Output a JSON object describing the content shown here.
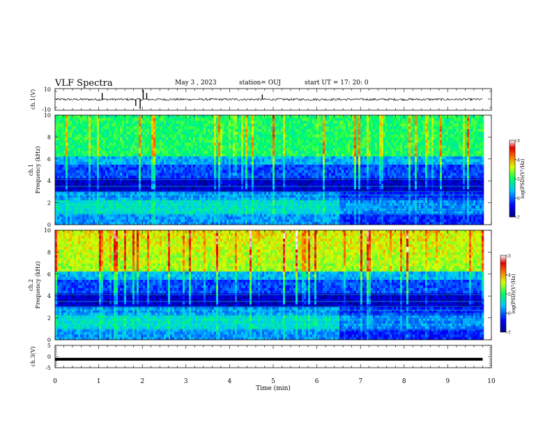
{
  "header": {
    "title": "VLF Spectra",
    "date": "May 3 , 2023",
    "station": "station= OUJ",
    "start": "start UT =  17: 20: 0"
  },
  "chart_data": [
    {
      "type": "line",
      "panel": "ch1-waveform",
      "ylabel": "ch.1(V)",
      "ylim": [
        -10,
        10
      ],
      "ytick_labels": [
        "10",
        "-10"
      ],
      "xlim": [
        0,
        10
      ],
      "baseline": 0,
      "noise_amplitude": 1,
      "end_minute": 9.8,
      "spikes": [
        {
          "x": 1.08,
          "y": 2
        },
        {
          "x": 1.85,
          "y": -2
        },
        {
          "x": 1.95,
          "y": -3
        },
        {
          "x": 2.02,
          "y": 3
        },
        {
          "x": 2.1,
          "y": 2
        },
        {
          "x": 4.75,
          "y": 1.5
        }
      ]
    },
    {
      "type": "heatmap",
      "panel": "ch1-spectrogram",
      "ylabel": "ch.1\nFrequency (kHz)",
      "ylim": [
        0,
        10
      ],
      "yticks": [
        0,
        2,
        4,
        6,
        8,
        10
      ],
      "xlim": [
        0,
        10
      ],
      "end_minute": 9.8,
      "colorbar": {
        "label": "log(PSD)(V²/Hz)",
        "range": [
          -7,
          -3
        ],
        "ticks": [
          "-3",
          "-4",
          "-5",
          "-6",
          "-7"
        ]
      }
    },
    {
      "type": "heatmap",
      "panel": "ch2-spectrogram",
      "ylabel": "ch.2\nFrequency (kHz)",
      "ylim": [
        0,
        10
      ],
      "yticks": [
        0,
        2,
        4,
        6,
        8,
        10
      ],
      "xlim": [
        0,
        10
      ],
      "end_minute": 9.8,
      "colorbar": {
        "label": "log(PSD)(V²/Hz)",
        "range": [
          -7,
          -3
        ],
        "ticks": [
          "-3",
          "-4",
          "-5",
          "-6",
          "-7"
        ]
      }
    },
    {
      "type": "line",
      "panel": "ch3-waveform",
      "ylabel": "ch.3(V)",
      "ylim": [
        -5,
        5
      ],
      "ytick_labels": [
        "5",
        "0",
        "-5"
      ],
      "xlim": [
        0,
        10
      ],
      "level": -1.2,
      "end_minute": 9.8
    }
  ],
  "x_axis": {
    "label": "Time (min)",
    "ticks": [
      0,
      1,
      2,
      3,
      4,
      5,
      6,
      7,
      8,
      9,
      10
    ]
  }
}
